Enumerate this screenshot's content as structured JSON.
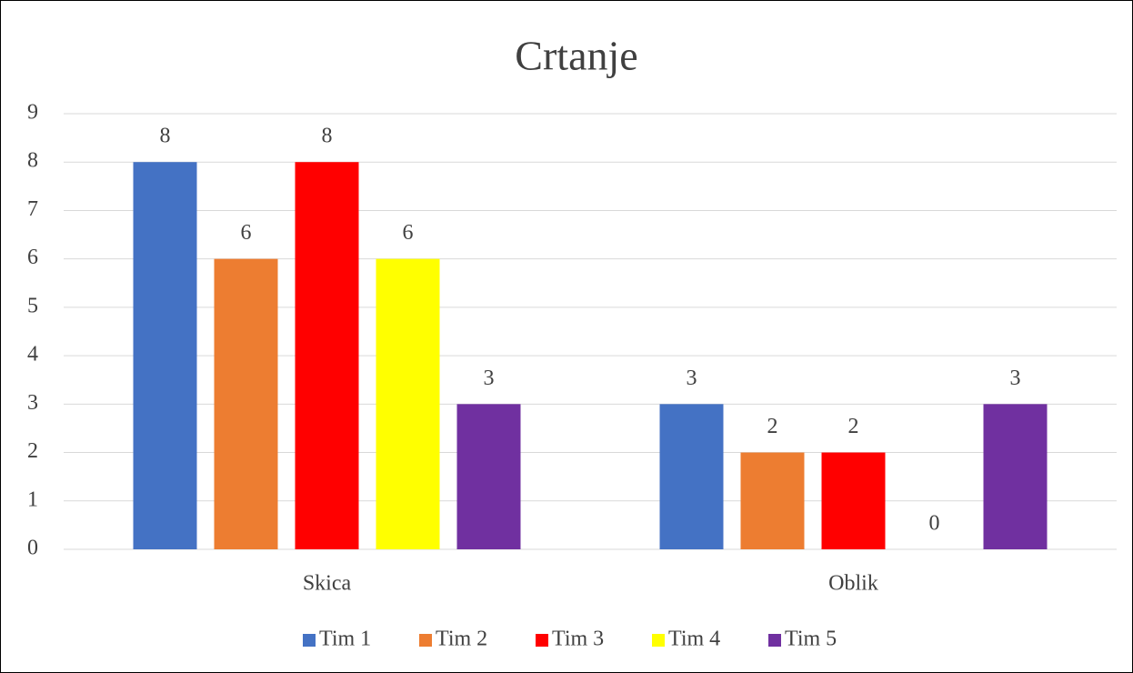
{
  "chart_data": {
    "type": "bar",
    "title": "Crtanje",
    "categories": [
      "Skica",
      "Oblik"
    ],
    "series": [
      {
        "name": "Tim 1",
        "color": "#4472c4",
        "values": [
          8,
          3
        ]
      },
      {
        "name": "Tim 2",
        "color": "#ed7d31",
        "values": [
          6,
          2
        ]
      },
      {
        "name": "Tim 3",
        "color": "#ff0000",
        "values": [
          8,
          2
        ]
      },
      {
        "name": "Tim 4",
        "color": "#ffff00",
        "values": [
          6,
          0
        ]
      },
      {
        "name": "Tim 5",
        "color": "#7030a0",
        "values": [
          3,
          3
        ]
      }
    ],
    "ylim": [
      0,
      9
    ],
    "yticks": [
      0,
      1,
      2,
      3,
      4,
      5,
      6,
      7,
      8,
      9
    ],
    "grid": true,
    "legend": "bottom"
  }
}
